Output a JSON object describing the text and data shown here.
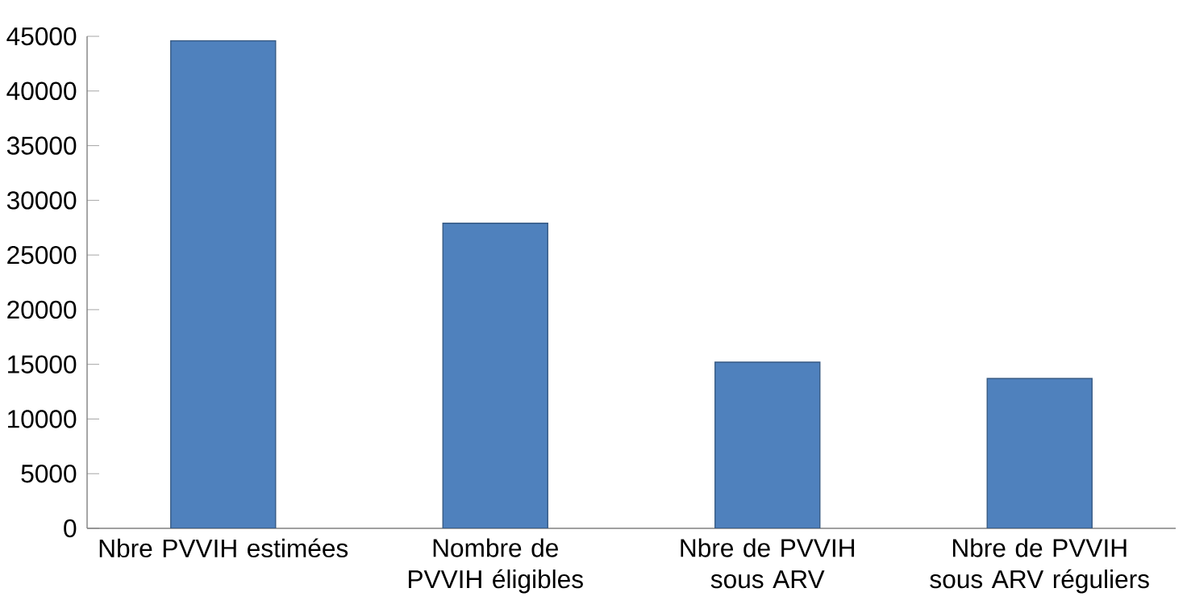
{
  "chart_data": {
    "type": "bar",
    "categories": [
      "Nbre PVVIH estimées",
      "Nombre de PVVIH éligibles",
      "Nbre de PVVIH sous ARV",
      "Nbre de PVVIH sous ARV réguliers"
    ],
    "values": [
      44600,
      27900,
      15200,
      13700
    ],
    "color": "#4f81bd",
    "ylim": [
      0,
      45000
    ],
    "yticks": [
      0,
      5000,
      10000,
      15000,
      20000,
      25000,
      30000,
      35000,
      40000,
      45000
    ],
    "grid": false
  }
}
